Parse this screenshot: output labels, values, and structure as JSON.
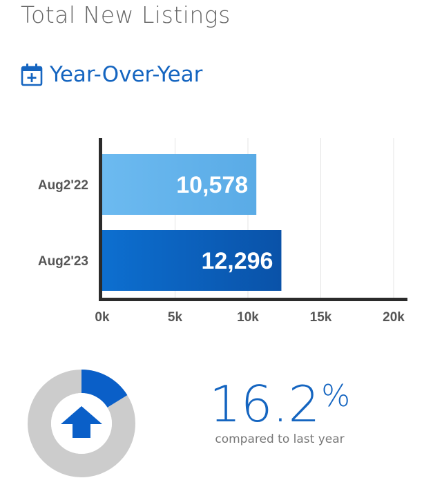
{
  "header": {
    "title": "Total New Listings",
    "section_title": "Year-Over-Year",
    "section_icon": "calendar-plus-icon"
  },
  "chart_data": {
    "type": "bar",
    "orientation": "horizontal",
    "categories": [
      "Aug2'22",
      "Aug2'23"
    ],
    "values": [
      10578,
      12296
    ],
    "value_labels": [
      "10,578",
      "12,296"
    ],
    "xlim": [
      0,
      21000
    ],
    "x_ticks": [
      0,
      5000,
      10000,
      15000,
      20000
    ],
    "x_tick_labels": [
      "0k",
      "5k",
      "10k",
      "15k",
      "20k"
    ],
    "grid": true,
    "colors": [
      "#5aabe6",
      "#0a52a8"
    ]
  },
  "summary": {
    "change_value": "16.2",
    "change_unit": "%",
    "direction": "up",
    "change_fraction": 0.162,
    "caption": "compared to last year",
    "icon": "arrow-up-icon",
    "colors": {
      "accent": "#1565c0",
      "ring_bg": "#cccccc",
      "ring_fill": "#0a5fc8"
    }
  }
}
